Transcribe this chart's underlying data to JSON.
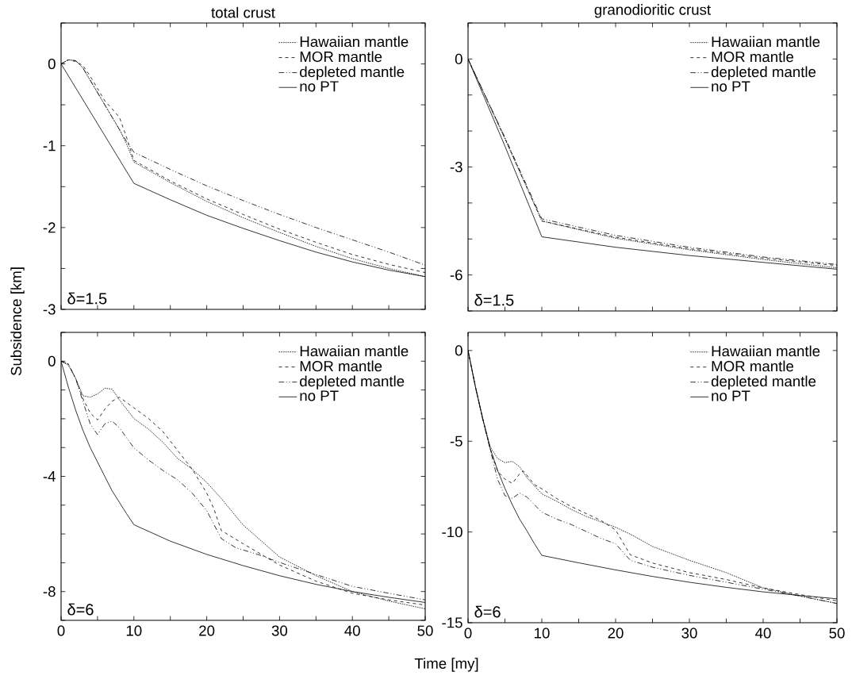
{
  "chart_data": [
    {
      "type": "line",
      "title": "total crust",
      "ylabel": "Subsidence [km]",
      "annotations": [
        "δ=1.5"
      ],
      "legend": "top right",
      "tick_labels": "y",
      "xlim": [
        0,
        50
      ],
      "ylim": [
        -3,
        0.5
      ],
      "xticks": [
        0,
        {
          "value": 5,
          "label": null
        },
        10,
        {
          "value": 15,
          "label": null
        },
        20,
        {
          "value": 25,
          "label": null
        },
        30,
        {
          "value": 35,
          "label": null
        },
        40,
        {
          "value": 45,
          "label": null
        },
        50
      ],
      "yticks": [
        -3,
        {
          "value": -2.5,
          "label": null
        },
        -2,
        {
          "value": -1.5,
          "label": null
        },
        -1,
        {
          "value": -0.5,
          "label": null
        },
        0,
        {
          "value": 0.5,
          "label": null
        }
      ],
      "series": [
        {
          "name": "Hawaiian mantle",
          "color": "#000000",
          "line_style": "dotted",
          "x": [
            0,
            1,
            2,
            3,
            4,
            5,
            6,
            7,
            8,
            9,
            10,
            15,
            20,
            25,
            30,
            35,
            40,
            45,
            50
          ],
          "values": [
            0,
            0.05,
            0.04,
            -0.05,
            -0.2,
            -0.35,
            -0.5,
            -0.65,
            -0.8,
            -0.98,
            -1.2,
            -1.45,
            -1.68,
            -1.88,
            -2.06,
            -2.23,
            -2.38,
            -2.5,
            -2.6
          ]
        },
        {
          "name": "MOR mantle",
          "color": "#000000",
          "line_style": "dashed",
          "x": [
            0,
            1,
            2,
            3,
            4,
            5,
            6,
            7,
            8,
            9,
            10,
            15,
            20,
            25,
            30,
            35,
            40,
            45,
            50
          ],
          "values": [
            0,
            0.05,
            0.03,
            -0.02,
            -0.15,
            -0.3,
            -0.45,
            -0.55,
            -0.65,
            -0.9,
            -1.18,
            -1.43,
            -1.65,
            -1.84,
            -2.02,
            -2.18,
            -2.33,
            -2.45,
            -2.55
          ]
        },
        {
          "name": "depleted mantle",
          "color": "#000000",
          "line_style": "dashdotdotted",
          "x": [
            0,
            1,
            2,
            3,
            4,
            5,
            6,
            7,
            8,
            9,
            10,
            15,
            20,
            25,
            30,
            35,
            40,
            45,
            50
          ],
          "values": [
            0,
            0.05,
            0.04,
            -0.05,
            -0.2,
            -0.35,
            -0.5,
            -0.65,
            -0.8,
            -0.95,
            -1.08,
            -1.29,
            -1.49,
            -1.67,
            -1.84,
            -2.0,
            -2.15,
            -2.3,
            -2.46
          ]
        },
        {
          "name": "no PT",
          "color": "#000000",
          "line_style": "solid",
          "x": [
            0,
            10,
            15,
            20,
            25,
            30,
            35,
            40,
            45,
            50
          ],
          "values": [
            0,
            -1.46,
            -1.66,
            -1.85,
            -2.01,
            -2.16,
            -2.3,
            -2.42,
            -2.52,
            -2.6
          ]
        }
      ]
    },
    {
      "type": "line",
      "title": "granodioritic crust",
      "annotations": [
        "δ=1.5"
      ],
      "legend": "top right",
      "tick_labels": "y",
      "xlim": [
        0,
        50
      ],
      "ylim": [
        -7,
        1
      ],
      "xticks": [
        0,
        {
          "value": 5,
          "label": null
        },
        10,
        {
          "value": 15,
          "label": null
        },
        20,
        {
          "value": 25,
          "label": null
        },
        30,
        {
          "value": 35,
          "label": null
        },
        40,
        {
          "value": 45,
          "label": null
        },
        50
      ],
      "yticks": [
        {
          "value": -7,
          "label": null
        },
        -6,
        {
          "value": -5,
          "label": null
        },
        {
          "value": -4,
          "label": null
        },
        -3,
        {
          "value": -2,
          "label": null
        },
        {
          "value": -1,
          "label": null
        },
        0,
        {
          "value": 1,
          "label": null
        }
      ],
      "series": [
        {
          "name": "Hawaiian mantle",
          "color": "#000000",
          "line_style": "dotted",
          "x": [
            0,
            5,
            10,
            20,
            30,
            40,
            50
          ],
          "values": [
            0,
            -2.22,
            -4.5,
            -4.98,
            -5.3,
            -5.57,
            -5.8
          ]
        },
        {
          "name": "MOR mantle",
          "color": "#000000",
          "line_style": "dashed",
          "x": [
            0,
            5,
            10,
            20,
            30,
            40,
            50
          ],
          "values": [
            0,
            -2.2,
            -4.5,
            -4.95,
            -5.27,
            -5.53,
            -5.74
          ]
        },
        {
          "name": "depleted mantle",
          "color": "#000000",
          "line_style": "dashdotdotted",
          "x": [
            0,
            5,
            10,
            20,
            30,
            40,
            50
          ],
          "values": [
            0,
            -2.18,
            -4.44,
            -4.9,
            -5.23,
            -5.5,
            -5.71
          ]
        },
        {
          "name": "no PT",
          "color": "#000000",
          "line_style": "solid",
          "x": [
            0,
            5,
            10,
            20,
            30,
            40,
            50
          ],
          "values": [
            0,
            -2.42,
            -4.94,
            -5.23,
            -5.46,
            -5.65,
            -5.84
          ]
        }
      ]
    },
    {
      "type": "line",
      "xlabel": "Time [my]",
      "annotations": [
        "δ=6"
      ],
      "legend": "top right",
      "xlim": [
        0,
        50
      ],
      "ylim": [
        -9,
        1
      ],
      "xticks": [
        0,
        {
          "value": 5,
          "label": null
        },
        10,
        {
          "value": 15,
          "label": null
        },
        20,
        {
          "value": 25,
          "label": null
        },
        30,
        {
          "value": 35,
          "label": null
        },
        40,
        {
          "value": 45,
          "label": null
        },
        50
      ],
      "yticks": [
        {
          "value": -9,
          "label": null
        },
        -8,
        {
          "value": -7,
          "label": null
        },
        {
          "value": -6,
          "label": null
        },
        {
          "value": -5,
          "label": null
        },
        -4,
        {
          "value": -3,
          "label": null
        },
        {
          "value": -2,
          "label": null
        },
        {
          "value": -1,
          "label": null
        },
        0,
        {
          "value": 1,
          "label": null
        }
      ],
      "series": [
        {
          "name": "Hawaiian mantle",
          "color": "#000000",
          "line_style": "dotted",
          "x": [
            0,
            1,
            2,
            3,
            4,
            5,
            6,
            7,
            8,
            10,
            12,
            14,
            16,
            18,
            20,
            22,
            25,
            30,
            35,
            40,
            45,
            50
          ],
          "values": [
            0,
            -0.14,
            -0.6,
            -1.2,
            -1.25,
            -1.14,
            -0.94,
            -0.97,
            -1.34,
            -1.99,
            -2.36,
            -2.82,
            -3.38,
            -3.75,
            -4.21,
            -4.77,
            -5.69,
            -6.8,
            -7.45,
            -8.0,
            -8.33,
            -8.6
          ]
        },
        {
          "name": "MOR mantle",
          "color": "#000000",
          "line_style": "dashed",
          "x": [
            0,
            1,
            2,
            3,
            4,
            5,
            6,
            7,
            8,
            10,
            12,
            14,
            16,
            18,
            20,
            21,
            22,
            25,
            30,
            35,
            40,
            45,
            50
          ],
          "values": [
            0,
            -0.1,
            -0.6,
            -1.3,
            -1.8,
            -2.04,
            -1.67,
            -1.39,
            -1.25,
            -1.62,
            -1.99,
            -2.45,
            -3.1,
            -3.75,
            -4.58,
            -5.14,
            -5.88,
            -6.34,
            -7.08,
            -7.64,
            -8.06,
            -8.29,
            -8.47
          ]
        },
        {
          "name": "depleted mantle",
          "color": "#000000",
          "line_style": "dashdotdotted",
          "x": [
            0,
            1,
            2,
            3,
            4,
            5,
            6,
            7,
            8,
            10,
            12,
            14,
            16,
            18,
            20,
            22,
            24,
            27,
            30,
            35,
            40,
            45,
            50
          ],
          "values": [
            0,
            -0.1,
            -0.6,
            -1.4,
            -2.18,
            -2.55,
            -2.18,
            -2.08,
            -2.31,
            -3.01,
            -3.43,
            -3.8,
            -4.12,
            -4.58,
            -5.19,
            -6.16,
            -6.48,
            -6.71,
            -6.99,
            -7.41,
            -7.82,
            -8.06,
            -8.29
          ]
        },
        {
          "name": "no PT",
          "color": "#000000",
          "line_style": "solid",
          "x": [
            0,
            1,
            2,
            3,
            4,
            5,
            6,
            7,
            8,
            9,
            10,
            15,
            20,
            25,
            30,
            35,
            40,
            45,
            50
          ],
          "values": [
            0,
            -0.9,
            -1.7,
            -2.4,
            -3.0,
            -3.5,
            -4.0,
            -4.5,
            -4.9,
            -5.3,
            -5.68,
            -6.25,
            -6.71,
            -7.1,
            -7.45,
            -7.75,
            -8.0,
            -8.2,
            -8.38
          ]
        }
      ]
    },
    {
      "type": "line",
      "annotations": [
        "δ=6"
      ],
      "legend": "top right",
      "xlim": [
        0,
        50
      ],
      "ylim": [
        -15,
        1
      ],
      "xticks": [
        0,
        {
          "value": 5,
          "label": null
        },
        10,
        {
          "value": 15,
          "label": null
        },
        20,
        {
          "value": 25,
          "label": null
        },
        30,
        {
          "value": 35,
          "label": null
        },
        40,
        {
          "value": 45,
          "label": null
        },
        50
      ],
      "yticks": [
        -15,
        -10,
        -5,
        0
      ],
      "series": [
        {
          "name": "Hawaiian mantle",
          "color": "#000000",
          "line_style": "dotted",
          "x": [
            0,
            1,
            2,
            3,
            4,
            5,
            6,
            7,
            8,
            10,
            12,
            14,
            16,
            18,
            20,
            22,
            25,
            30,
            35,
            40,
            45,
            50
          ],
          "values": [
            0,
            -2.0,
            -3.75,
            -5.3,
            -5.95,
            -6.18,
            -6.11,
            -6.41,
            -7.02,
            -7.9,
            -8.3,
            -8.76,
            -9.14,
            -9.44,
            -9.74,
            -10.12,
            -10.8,
            -11.56,
            -12.24,
            -13.08,
            -13.53,
            -13.94
          ]
        },
        {
          "name": "MOR mantle",
          "color": "#000000",
          "line_style": "dashed",
          "x": [
            0,
            1,
            2,
            3,
            4,
            5,
            6,
            7,
            7.5,
            9,
            10,
            12,
            14,
            16,
            18,
            20,
            21,
            22,
            25,
            30,
            35,
            40,
            45,
            50
          ],
          "values": [
            0,
            -2.0,
            -3.75,
            -5.4,
            -6.64,
            -7.09,
            -7.32,
            -6.79,
            -6.64,
            -7.39,
            -7.62,
            -8.15,
            -8.6,
            -8.98,
            -9.36,
            -9.89,
            -10.58,
            -11.26,
            -11.71,
            -12.24,
            -12.62,
            -13.08,
            -13.45,
            -13.79
          ]
        },
        {
          "name": "depleted mantle",
          "color": "#000000",
          "line_style": "dashdotdotted",
          "x": [
            0,
            1,
            2,
            3,
            4,
            5,
            6,
            7,
            8,
            10,
            12,
            14,
            16,
            18,
            20,
            22,
            25,
            30,
            35,
            40,
            45,
            50
          ],
          "values": [
            0,
            -2.0,
            -3.8,
            -5.45,
            -7.09,
            -8.0,
            -8.15,
            -7.85,
            -8.08,
            -8.91,
            -9.29,
            -9.59,
            -9.97,
            -10.35,
            -10.65,
            -11.56,
            -11.94,
            -12.39,
            -12.77,
            -13.15,
            -13.53,
            -13.94
          ]
        },
        {
          "name": "no PT",
          "color": "#000000",
          "line_style": "solid",
          "x": [
            0,
            1,
            2,
            3,
            4,
            5,
            6,
            7,
            8,
            9,
            10,
            15,
            20,
            25,
            30,
            35,
            40,
            45,
            50
          ],
          "values": [
            0,
            -2.0,
            -3.8,
            -5.4,
            -6.6,
            -7.6,
            -8.5,
            -9.3,
            -9.95,
            -10.65,
            -11.29,
            -11.7,
            -12.09,
            -12.45,
            -12.77,
            -13.05,
            -13.3,
            -13.5,
            -13.68
          ]
        }
      ]
    }
  ]
}
